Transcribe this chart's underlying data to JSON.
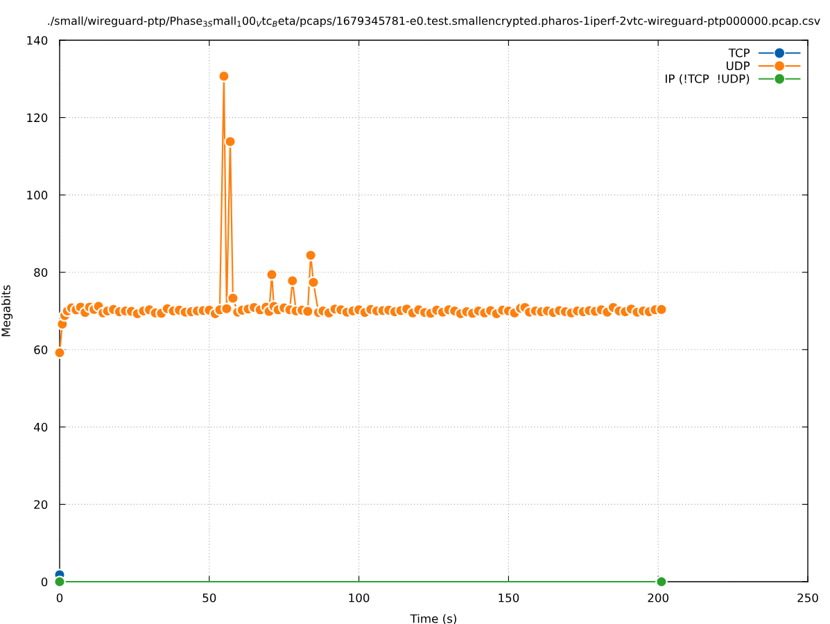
{
  "chart_data": {
    "type": "line",
    "title": "./small/wireguard-ptp/Phase$_{3S}$mall$_{1}$00$_{V}$tc$_{B}$eta/pcaps/1679345781-e0.test.smallencrypted.pharos-1iperf-2vtc-wireguard-ptp000000.pcap.csv",
    "xlabel": "Time (s)",
    "ylabel": "Megabits",
    "xlim": [
      0,
      250
    ],
    "xticks": [
      0,
      50,
      100,
      150,
      200,
      250
    ],
    "ylim": [
      0,
      140
    ],
    "yticks": [
      0,
      20,
      40,
      60,
      80,
      100,
      120,
      140
    ],
    "grid": true,
    "legend": "top right",
    "marker": "circle",
    "line_style": "solid",
    "series": [
      {
        "name": "TCP",
        "color": "#0060ad",
        "x": [
          0
        ],
        "values": [
          1.8
        ]
      },
      {
        "name": "UDP",
        "color": "#ff7f0e",
        "x": [
          0,
          0.9,
          1.7,
          2.6,
          4,
          5.5,
          7,
          8.5,
          10,
          11.5,
          13,
          14.5,
          16,
          18,
          20,
          22,
          24,
          26,
          28,
          30,
          32,
          34,
          36,
          38,
          40,
          42,
          44,
          46,
          48,
          50,
          52,
          53.5,
          54.9,
          55.8,
          57.0,
          57.9,
          59.5,
          61,
          63,
          65,
          67,
          69,
          70,
          70.9,
          71.6,
          73,
          75,
          76.9,
          77.8,
          79,
          81,
          82.9,
          83.9,
          84.8,
          86.5,
          88,
          90,
          92,
          94,
          96,
          98,
          100,
          102,
          104,
          106,
          108,
          110,
          112,
          114,
          116,
          118,
          120,
          122,
          124,
          126,
          128,
          130,
          132,
          134,
          136,
          138,
          140,
          142,
          144,
          146,
          148,
          150,
          152,
          154,
          155.5,
          157,
          159,
          161,
          163,
          165,
          167,
          169,
          171,
          173,
          175,
          177,
          179,
          181,
          183,
          185,
          187,
          189,
          191,
          193,
          195,
          197,
          199,
          201.1
        ],
        "values": [
          59.2,
          66.6,
          68.8,
          70.0,
          70.8,
          70.3,
          71.0,
          69.6,
          71.0,
          70.4,
          71.2,
          69.5,
          70.0,
          70.4,
          69.8,
          70.0,
          69.9,
          69.3,
          70.0,
          70.3,
          69.5,
          69.4,
          70.6,
          70.0,
          70.2,
          69.7,
          69.8,
          70.0,
          70.1,
          70.2,
          69.3,
          70.3,
          130.7,
          70.6,
          113.8,
          73.3,
          69.7,
          70.2,
          70.5,
          70.9,
          70.3,
          71.0,
          69.9,
          79.4,
          71.2,
          70.3,
          70.8,
          70.3,
          77.8,
          70.0,
          70.2,
          69.9,
          84.4,
          77.4,
          69.6,
          70.0,
          69.5,
          70.5,
          70.3,
          69.7,
          70.0,
          70.3,
          69.6,
          70.4,
          70.0,
          70.1,
          70.2,
          69.8,
          70.1,
          70.5,
          69.5,
          70.3,
          69.6,
          69.4,
          70.2,
          69.7,
          70.3,
          70.0,
          69.3,
          69.8,
          69.4,
          70.0,
          69.5,
          70.1,
          69.3,
          70.2,
          70.0,
          69.5,
          70.7,
          70.9,
          69.7,
          70.0,
          69.8,
          70.0,
          69.6,
          70.1,
          69.8,
          69.5,
          70.0,
          69.8,
          70.1,
          69.9,
          70.3,
          69.7,
          70.9,
          70.0,
          69.8,
          70.5,
          69.7,
          70.0,
          69.8,
          70.3,
          70.4
        ]
      },
      {
        "name": "IP (!TCP  !UDP)",
        "color": "#2ca02c",
        "x": [
          0,
          201.1
        ],
        "values": [
          0,
          0
        ]
      }
    ]
  }
}
